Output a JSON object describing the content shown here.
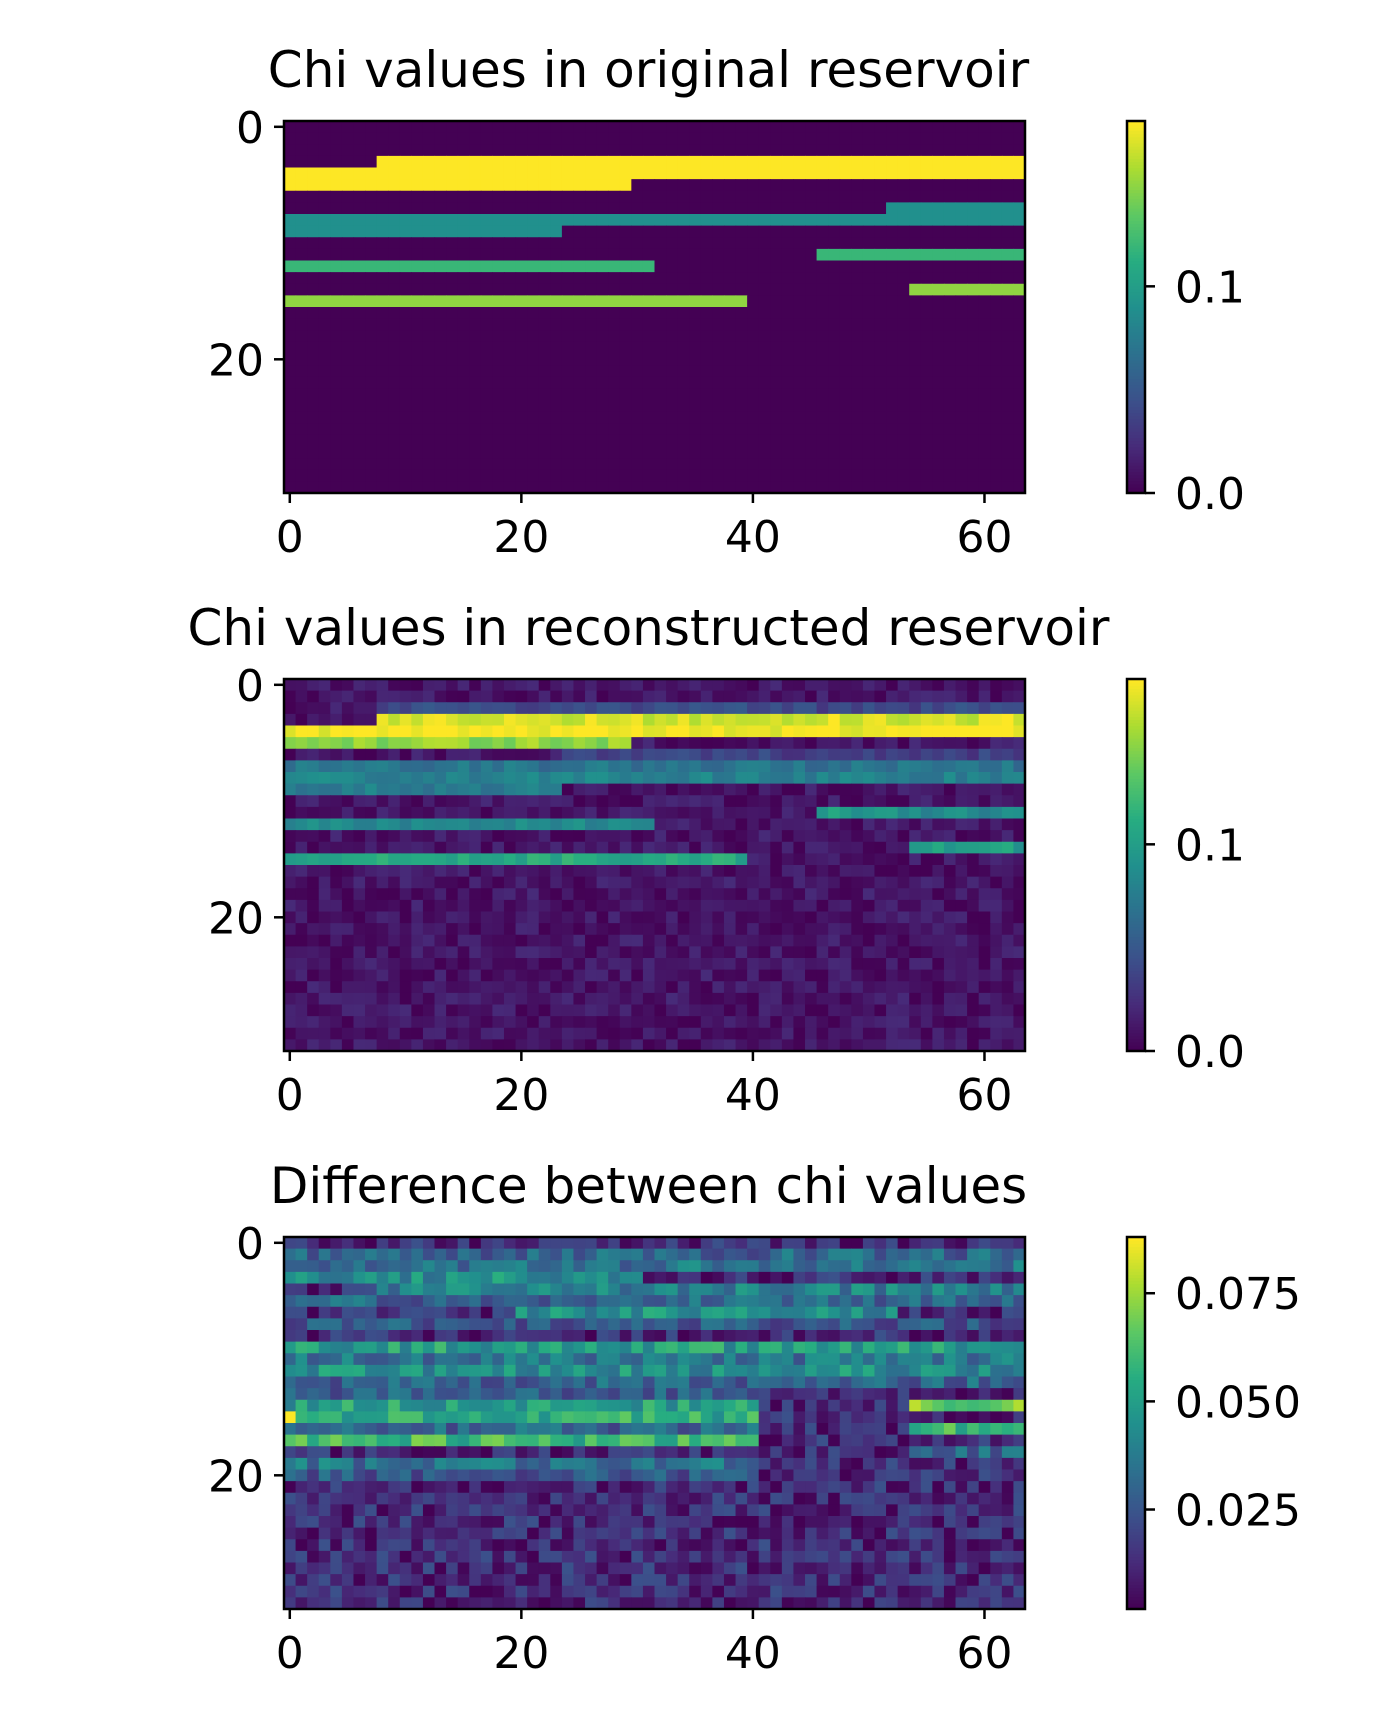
{
  "chart_data": [
    {
      "type": "heatmap",
      "title": "Chi values in original reservoir",
      "xlabel": "",
      "ylabel": "",
      "rows": 32,
      "cols": 64,
      "xlim": [
        -0.5,
        63.5
      ],
      "ylim": [
        31.5,
        -0.5
      ],
      "xticks": [
        0,
        20,
        40,
        60
      ],
      "yticks": [
        0,
        20
      ],
      "colorbar": {
        "vmin": 0.0,
        "vmax": 0.18,
        "ticks": [
          0.0,
          0.1
        ],
        "tick_labels": [
          "0.0",
          "0.1"
        ]
      },
      "background_value": 0.0,
      "bands": [
        {
          "row": 3,
          "from": 8,
          "to": 63,
          "value": 0.18
        },
        {
          "row": 4,
          "from": 0,
          "to": 63,
          "value": 0.18
        },
        {
          "row": 5,
          "from": 0,
          "to": 29,
          "value": 0.18
        },
        {
          "row": 7,
          "from": 52,
          "to": 63,
          "value": 0.09
        },
        {
          "row": 8,
          "from": 0,
          "to": 63,
          "value": 0.09
        },
        {
          "row": 9,
          "from": 0,
          "to": 23,
          "value": 0.09
        },
        {
          "row": 11,
          "from": 46,
          "to": 63,
          "value": 0.12
        },
        {
          "row": 12,
          "from": 0,
          "to": 31,
          "value": 0.12
        },
        {
          "row": 14,
          "from": 54,
          "to": 63,
          "value": 0.15
        },
        {
          "row": 15,
          "from": 0,
          "to": 39,
          "value": 0.15
        }
      ]
    },
    {
      "type": "heatmap",
      "title": "Chi values in reconstructed reservoir",
      "xlabel": "",
      "ylabel": "",
      "rows": 32,
      "cols": 64,
      "xlim": [
        -0.5,
        63.5
      ],
      "ylim": [
        31.5,
        -0.5
      ],
      "xticks": [
        0,
        20,
        40,
        60
      ],
      "yticks": [
        0,
        20
      ],
      "colorbar": {
        "vmin": 0.0,
        "vmax": 0.18,
        "ticks": [
          0.0,
          0.1
        ],
        "tick_labels": [
          "0.0",
          "0.1"
        ]
      },
      "background_value": 0.01,
      "bands": [
        {
          "row": 2,
          "from": 8,
          "to": 63,
          "value": 0.04
        },
        {
          "row": 3,
          "from": 8,
          "to": 63,
          "value": 0.17
        },
        {
          "row": 4,
          "from": 0,
          "to": 63,
          "value": 0.18
        },
        {
          "row": 5,
          "from": 0,
          "to": 29,
          "value": 0.15
        },
        {
          "row": 6,
          "from": 24,
          "to": 63,
          "value": 0.035
        },
        {
          "row": 7,
          "from": 0,
          "to": 63,
          "value": 0.07
        },
        {
          "row": 8,
          "from": 0,
          "to": 63,
          "value": 0.08
        },
        {
          "row": 9,
          "from": 0,
          "to": 23,
          "value": 0.075
        },
        {
          "row": 11,
          "from": 46,
          "to": 52,
          "value": 0.1
        },
        {
          "row": 11,
          "from": 53,
          "to": 63,
          "value": 0.085
        },
        {
          "row": 12,
          "from": 0,
          "to": 31,
          "value": 0.085
        },
        {
          "row": 14,
          "from": 54,
          "to": 63,
          "value": 0.1
        },
        {
          "row": 15,
          "from": 0,
          "to": 39,
          "value": 0.11
        }
      ]
    },
    {
      "type": "heatmap",
      "title": "Difference between chi values",
      "xlabel": "",
      "ylabel": "",
      "rows": 32,
      "cols": 64,
      "xlim": [
        -0.5,
        63.5
      ],
      "ylim": [
        31.5,
        -0.5
      ],
      "xticks": [
        0,
        20,
        40,
        60
      ],
      "yticks": [
        0,
        20
      ],
      "colorbar": {
        "vmin": 0.002,
        "vmax": 0.088,
        "ticks": [
          0.025,
          0.05,
          0.075
        ],
        "tick_labels": [
          "0.025",
          "0.050",
          "0.075"
        ]
      },
      "background_value": 0.012,
      "bands": [
        {
          "row": 1,
          "from": 0,
          "to": 63,
          "value": 0.03
        },
        {
          "row": 2,
          "from": 0,
          "to": 63,
          "value": 0.035
        },
        {
          "row": 3,
          "from": 0,
          "to": 30,
          "value": 0.045
        },
        {
          "row": 4,
          "from": 8,
          "to": 63,
          "value": 0.04
        },
        {
          "row": 5,
          "from": 0,
          "to": 63,
          "value": 0.03
        },
        {
          "row": 6,
          "from": 20,
          "to": 52,
          "value": 0.045
        },
        {
          "row": 7,
          "from": 0,
          "to": 63,
          "value": 0.025
        },
        {
          "row": 9,
          "from": 0,
          "to": 63,
          "value": 0.05
        },
        {
          "row": 10,
          "from": 0,
          "to": 63,
          "value": 0.035
        },
        {
          "row": 11,
          "from": 0,
          "to": 63,
          "value": 0.045
        },
        {
          "row": 12,
          "from": 0,
          "to": 63,
          "value": 0.03
        },
        {
          "row": 13,
          "from": 0,
          "to": 40,
          "value": 0.028
        },
        {
          "row": 14,
          "from": 0,
          "to": 40,
          "value": 0.05
        },
        {
          "row": 14,
          "from": 54,
          "to": 63,
          "value": 0.07
        },
        {
          "row": 15,
          "from": 0,
          "to": 40,
          "value": 0.055
        },
        {
          "row": 16,
          "from": 0,
          "to": 40,
          "value": 0.03
        },
        {
          "row": 16,
          "from": 54,
          "to": 63,
          "value": 0.06
        },
        {
          "row": 17,
          "from": 0,
          "to": 40,
          "value": 0.06
        },
        {
          "row": 18,
          "from": 54,
          "to": 63,
          "value": 0.03
        },
        {
          "row": 19,
          "from": 0,
          "to": 40,
          "value": 0.035
        },
        {
          "row": 20,
          "from": 0,
          "to": 40,
          "value": 0.025
        }
      ],
      "hot_cells": [
        {
          "row": 15,
          "col": 0,
          "value": 0.088
        },
        {
          "row": 14,
          "col": 63,
          "value": 0.088
        }
      ]
    }
  ]
}
